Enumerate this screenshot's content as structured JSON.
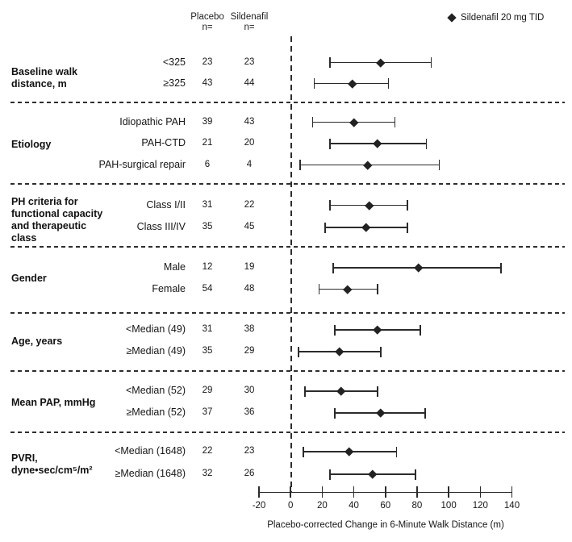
{
  "header": {
    "placebo_label": "Placebo",
    "sildenafil_label": "Sildenafil",
    "n_label": "n="
  },
  "legend": {
    "marker": "diamond-icon",
    "label": "Sildenafil 20 mg TID"
  },
  "axis": {
    "title": "Placebo-corrected Change in 6-Minute Walk Distance (m)",
    "min": -20,
    "max": 140,
    "ticks": [
      -20,
      0,
      20,
      40,
      60,
      80,
      100,
      120,
      140
    ],
    "zero_reference_line": "dashed"
  },
  "chart_data": {
    "type": "forest",
    "marker": "diamond",
    "series_label": "Sildenafil 20 mg TID",
    "xlim": [
      -20,
      140
    ],
    "xlabel": "Placebo-corrected Change in 6-Minute Walk Distance (m)",
    "sections": [
      {
        "label": "Baseline walk\ndistance, m",
        "rows": [
          {
            "label": "<325",
            "placebo_n": "23",
            "sildenafil_n": "23",
            "estimate": 57,
            "ci_low": 25,
            "ci_high": 89
          },
          {
            "label": "≥325",
            "placebo_n": "43",
            "sildenafil_n": "44",
            "estimate": 39,
            "ci_low": 15,
            "ci_high": 62
          }
        ]
      },
      {
        "label": "Etiology",
        "rows": [
          {
            "label": "Idiopathic PAH",
            "placebo_n": "39",
            "sildenafil_n": "43",
            "estimate": 40,
            "ci_low": 14,
            "ci_high": 66
          },
          {
            "label": "PAH-CTD",
            "placebo_n": "21",
            "sildenafil_n": "20",
            "estimate": 55,
            "ci_low": 25,
            "ci_high": 86
          },
          {
            "label": "PAH-surgical repair",
            "placebo_n": "6",
            "sildenafil_n": "4",
            "estimate": 49,
            "ci_low": 6,
            "ci_high": 94
          }
        ]
      },
      {
        "label": "PH criteria for\nfunctional capacity\nand therapeutic\nclass",
        "rows": [
          {
            "label": "Class I/II",
            "placebo_n": "31",
            "sildenafil_n": "22",
            "estimate": 50,
            "ci_low": 25,
            "ci_high": 74
          },
          {
            "label": "Class III/IV",
            "placebo_n": "35",
            "sildenafil_n": "45",
            "estimate": 48,
            "ci_low": 22,
            "ci_high": 74
          }
        ]
      },
      {
        "label": "Gender",
        "rows": [
          {
            "label": "Male",
            "placebo_n": "12",
            "sildenafil_n": "19",
            "estimate": 81,
            "ci_low": 27,
            "ci_high": 133
          },
          {
            "label": "Female",
            "placebo_n": "54",
            "sildenafil_n": "48",
            "estimate": 36,
            "ci_low": 18,
            "ci_high": 55
          }
        ]
      },
      {
        "label": "Age, years",
        "rows": [
          {
            "label": "<Median (49)",
            "placebo_n": "31",
            "sildenafil_n": "38",
            "estimate": 55,
            "ci_low": 28,
            "ci_high": 82
          },
          {
            "label": "≥Median (49)",
            "placebo_n": "35",
            "sildenafil_n": "29",
            "estimate": 31,
            "ci_low": 5,
            "ci_high": 57
          }
        ]
      },
      {
        "label": "Mean PAP, mmHg",
        "rows": [
          {
            "label": "<Median (52)",
            "placebo_n": "29",
            "sildenafil_n": "30",
            "estimate": 32,
            "ci_low": 9,
            "ci_high": 55
          },
          {
            "label": "≥Median (52)",
            "placebo_n": "37",
            "sildenafil_n": "36",
            "estimate": 57,
            "ci_low": 28,
            "ci_high": 85
          }
        ]
      },
      {
        "label": "PVRI,\ndyne•sec/cm⁵/m²",
        "rows": [
          {
            "label": "<Median (1648)",
            "placebo_n": "22",
            "sildenafil_n": "23",
            "estimate": 37,
            "ci_low": 8,
            "ci_high": 67
          },
          {
            "label": "≥Median (1648)",
            "placebo_n": "32",
            "sildenafil_n": "26",
            "estimate": 52,
            "ci_low": 25,
            "ci_high": 79
          }
        ]
      }
    ]
  }
}
